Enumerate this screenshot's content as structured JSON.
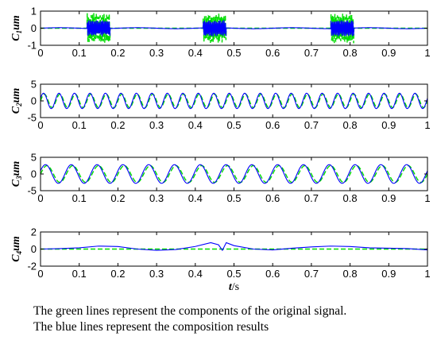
{
  "chart_data": [
    {
      "type": "line",
      "ylabel_main": "C",
      "ylabel_sub": "1",
      "ylabel_unit": "um",
      "xlim": [
        0,
        1
      ],
      "ylim": [
        -1,
        1
      ],
      "xticks": [
        "0",
        "0.1",
        "0.2",
        "0.3",
        "0.4",
        "0.5",
        "0.6",
        "0.7",
        "0.8",
        "0.9",
        "1"
      ],
      "yticks": [
        "-1",
        "0",
        "1"
      ],
      "series": [
        {
          "color": "#00dd00",
          "style": "dashed",
          "component": "intermittent",
          "bursts": [
            [
              0.12,
              0.18
            ],
            [
              0.42,
              0.48
            ],
            [
              0.75,
              0.81
            ]
          ],
          "amplitude": 0.9
        },
        {
          "color": "#0000ff",
          "style": "solid",
          "component": "intermittent",
          "bursts": [
            [
              0.12,
              0.18
            ],
            [
              0.42,
              0.48
            ],
            [
              0.75,
              0.81
            ]
          ],
          "amplitude": 0.8
        }
      ]
    },
    {
      "type": "line",
      "ylabel_main": "C",
      "ylabel_sub": "2",
      "ylabel_unit": "um",
      "xlim": [
        0,
        1
      ],
      "ylim": [
        -5,
        5
      ],
      "xticks": [
        "0",
        "0.1",
        "0.2",
        "0.3",
        "0.4",
        "0.5",
        "0.6",
        "0.7",
        "0.8",
        "0.9",
        "1"
      ],
      "yticks": [
        "-5",
        "0",
        "5"
      ],
      "series": [
        {
          "color": "#00dd00",
          "style": "dashed",
          "component": "sine",
          "amplitude": 2,
          "frequency_hz": 25
        },
        {
          "color": "#0000ff",
          "style": "solid",
          "component": "sine",
          "amplitude": 2.3,
          "frequency_hz": 25
        }
      ]
    },
    {
      "type": "line",
      "ylabel_main": "C",
      "ylabel_sub": "3",
      "ylabel_unit": "um",
      "xlim": [
        0,
        1
      ],
      "ylim": [
        -5,
        5
      ],
      "xticks": [
        "0",
        "0.1",
        "0.2",
        "0.3",
        "0.4",
        "0.5",
        "0.6",
        "0.7",
        "0.8",
        "0.9",
        "1"
      ],
      "yticks": [
        "-5",
        "0",
        "5"
      ],
      "series": [
        {
          "color": "#00dd00",
          "style": "dashed",
          "component": "sine",
          "amplitude": 2.5,
          "frequency_hz": 15
        },
        {
          "color": "#0000ff",
          "style": "solid",
          "component": "sine",
          "amplitude": 2.8,
          "frequency_hz": 15
        }
      ]
    },
    {
      "type": "line",
      "ylabel_main": "C",
      "ylabel_sub": "4",
      "ylabel_unit": "um",
      "xlim": [
        0,
        1
      ],
      "ylim": [
        -2,
        2
      ],
      "xticks": [
        "0",
        "0.1",
        "0.2",
        "0.3",
        "0.4",
        "0.5",
        "0.6",
        "0.7",
        "0.8",
        "0.9",
        "1"
      ],
      "yticks": [
        "-2",
        "0",
        "2"
      ],
      "xlabel_main": "t",
      "xlabel_unit": "/s",
      "series": [
        {
          "color": "#00dd00",
          "style": "dashed",
          "component": "zero"
        },
        {
          "color": "#0000ff",
          "style": "solid",
          "component": "residual",
          "x": [
            0,
            0.05,
            0.1,
            0.15,
            0.2,
            0.25,
            0.3,
            0.35,
            0.4,
            0.44,
            0.46,
            0.47,
            0.48,
            0.5,
            0.55,
            0.6,
            0.65,
            0.7,
            0.75,
            0.8,
            0.85,
            0.9,
            0.95,
            1.0
          ],
          "y": [
            0.0,
            0.05,
            0.15,
            0.35,
            0.3,
            0.0,
            -0.15,
            -0.05,
            0.3,
            0.75,
            0.5,
            -0.15,
            0.75,
            0.4,
            0.0,
            -0.1,
            0.1,
            0.25,
            0.35,
            0.3,
            0.15,
            0.1,
            0.05,
            -0.1
          ]
        }
      ]
    }
  ],
  "caption": {
    "line1": "The green lines represent the components of the original signal.",
    "line2": "The blue lines represent the composition results"
  }
}
